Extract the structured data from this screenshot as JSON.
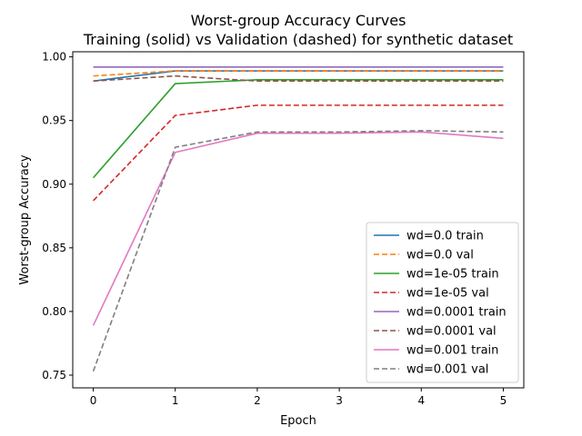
{
  "chart_data": {
    "type": "line",
    "title": "Worst-group Accuracy Curves",
    "subtitle": "Training (solid) vs Validation (dashed) for synthetic dataset",
    "xlabel": "Epoch",
    "ylabel": "Worst-group Accuracy",
    "x": [
      0,
      1,
      2,
      3,
      4,
      5
    ],
    "xlim": [
      -0.25,
      5.25
    ],
    "ylim": [
      0.74,
      1.004
    ],
    "xticks": [
      "0",
      "1",
      "2",
      "3",
      "4",
      "5"
    ],
    "yticks": [
      "0.75",
      "0.80",
      "0.85",
      "0.90",
      "0.95",
      "1.00"
    ],
    "grid": false,
    "legend_position": "lower-right",
    "series": [
      {
        "name": "wd=0.0 train",
        "style": "solid",
        "color": "#1f77b4",
        "values": [
          0.981,
          0.989,
          0.989,
          0.989,
          0.989,
          0.989
        ]
      },
      {
        "name": "wd=0.0 val",
        "style": "dashed",
        "color": "#ff7f0e",
        "values": [
          0.985,
          0.989,
          0.989,
          0.989,
          0.989,
          0.989
        ]
      },
      {
        "name": "wd=1e-05 train",
        "style": "solid",
        "color": "#2ca02c",
        "values": [
          0.905,
          0.979,
          0.982,
          0.982,
          0.982,
          0.982
        ]
      },
      {
        "name": "wd=1e-05 val",
        "style": "dashed",
        "color": "#d62728",
        "values": [
          0.887,
          0.954,
          0.962,
          0.962,
          0.962,
          0.962
        ]
      },
      {
        "name": "wd=0.0001 train",
        "style": "solid",
        "color": "#9467bd",
        "values": [
          0.992,
          0.992,
          0.992,
          0.992,
          0.992,
          0.992
        ]
      },
      {
        "name": "wd=0.0001 val",
        "style": "dashed",
        "color": "#8c564b",
        "values": [
          0.981,
          0.985,
          0.981,
          0.981,
          0.981,
          0.981
        ]
      },
      {
        "name": "wd=0.001 train",
        "style": "solid",
        "color": "#e377c2",
        "values": [
          0.789,
          0.925,
          0.94,
          0.94,
          0.941,
          0.936
        ]
      },
      {
        "name": "wd=0.001 val",
        "style": "dashed",
        "color": "#7f7f7f",
        "values": [
          0.753,
          0.929,
          0.941,
          0.941,
          0.942,
          0.941
        ]
      }
    ]
  }
}
